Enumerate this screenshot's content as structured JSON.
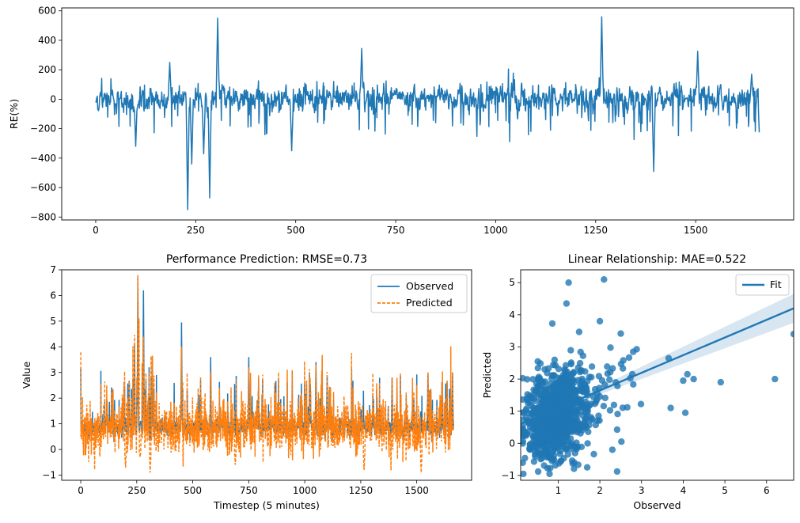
{
  "colors": {
    "observed": "#1f77b4",
    "predicted": "#ff7f0e",
    "fit_band": "#1f77b4"
  },
  "chart_data": [
    {
      "id": "re",
      "type": "line",
      "title": "",
      "xlabel": "",
      "ylabel": "RE(%)",
      "xlim": [
        -85,
        1745
      ],
      "ylim": [
        -820,
        620
      ],
      "xticks": [
        0,
        250,
        500,
        750,
        1000,
        1250,
        1500
      ],
      "yticks": [
        -800,
        -600,
        -400,
        -200,
        0,
        200,
        400,
        600
      ],
      "grid": false,
      "n_points": 1660,
      "spikes": [
        {
          "x": 185,
          "y": 250
        },
        {
          "x": 305,
          "y": 550
        },
        {
          "x": 665,
          "y": 345
        },
        {
          "x": 1265,
          "y": 560
        },
        {
          "x": 1505,
          "y": 325
        },
        {
          "x": 1640,
          "y": 170
        },
        {
          "x": 230,
          "y": -750
        },
        {
          "x": 240,
          "y": -440
        },
        {
          "x": 285,
          "y": -670
        },
        {
          "x": 270,
          "y": -370
        },
        {
          "x": 1395,
          "y": -490
        },
        {
          "x": 100,
          "y": -320
        },
        {
          "x": 490,
          "y": -350
        },
        {
          "x": 1660,
          "y": -300
        }
      ]
    },
    {
      "id": "perf",
      "type": "line",
      "title": "Performance Prediction: RMSE=0.73",
      "xlabel": "Timestep (5 minutes)",
      "ylabel": "Value",
      "xlim": [
        -85,
        1745
      ],
      "ylim": [
        -1.2,
        7.0
      ],
      "xticks": [
        0,
        250,
        500,
        750,
        1000,
        1250,
        1500
      ],
      "yticks": [
        -1,
        0,
        1,
        2,
        3,
        4,
        5,
        6,
        7
      ],
      "legend": "top-right",
      "grid": false,
      "series": [
        {
          "name": "Observed",
          "style": "solid",
          "peaks": [
            {
              "x": 240,
              "y": 4.1
            },
            {
              "x": 255,
              "y": 6.65
            },
            {
              "x": 280,
              "y": 6.2
            },
            {
              "x": 450,
              "y": 4.95
            },
            {
              "x": 320,
              "y": 3.6
            },
            {
              "x": 580,
              "y": 3.6
            },
            {
              "x": 750,
              "y": 3.6
            },
            {
              "x": 1050,
              "y": 3.4
            },
            {
              "x": 1100,
              "y": 2.9
            },
            {
              "x": 1390,
              "y": 2.8
            },
            {
              "x": 1550,
              "y": 2.9
            },
            {
              "x": 1660,
              "y": 3.0
            }
          ]
        },
        {
          "name": "Predicted",
          "style": "dashed",
          "peaks": [
            {
              "x": 260,
              "y": 5.1
            },
            {
              "x": 280,
              "y": 4.4
            },
            {
              "x": 450,
              "y": 4.0
            },
            {
              "x": 750,
              "y": 3.2
            },
            {
              "x": 1050,
              "y": 3.3
            },
            {
              "x": 1660,
              "y": 3.0
            }
          ],
          "troughs": [
            {
              "x": 200,
              "y": -0.7
            },
            {
              "x": 265,
              "y": -0.3
            },
            {
              "x": 310,
              "y": -0.9
            },
            {
              "x": 690,
              "y": -0.6
            },
            {
              "x": 1265,
              "y": -0.8
            },
            {
              "x": 1520,
              "y": -0.9
            }
          ]
        }
      ]
    },
    {
      "id": "lin",
      "type": "scatter",
      "title": "Linear Relationship: MAE=0.522",
      "xlabel": "Observed",
      "ylabel": "Predicted",
      "xlim": [
        0.1,
        6.65
      ],
      "ylim": [
        -1.15,
        5.4
      ],
      "xticks": [
        1,
        2,
        3,
        4,
        5,
        6
      ],
      "yticks": [
        -1,
        0,
        1,
        2,
        3,
        4,
        5
      ],
      "legend": "top-right",
      "grid": false,
      "n_points": 900,
      "fit": {
        "name": "Fit",
        "x0": 0.1,
        "y0": 0.6,
        "x1": 6.65,
        "y1": 4.2,
        "band_x": [
          1.0,
          6.65
        ],
        "band_halfwidth": [
          0.05,
          0.45
        ]
      },
      "outliers": [
        {
          "x": 1.25,
          "y": 5.0
        },
        {
          "x": 2.1,
          "y": 5.1
        },
        {
          "x": 6.65,
          "y": 3.4
        },
        {
          "x": 6.2,
          "y": 2.0
        },
        {
          "x": 4.9,
          "y": 1.9
        },
        {
          "x": 4.0,
          "y": 1.95
        },
        {
          "x": 4.1,
          "y": 2.15
        },
        {
          "x": 4.25,
          "y": 2.0
        },
        {
          "x": 3.7,
          "y": 1.1
        },
        {
          "x": 4.05,
          "y": 0.95
        },
        {
          "x": 3.65,
          "y": 2.65
        },
        {
          "x": 2.3,
          "y": -0.2
        },
        {
          "x": 2.8,
          "y": 2.85
        },
        {
          "x": 2.0,
          "y": 3.8
        },
        {
          "x": 1.2,
          "y": 4.35
        }
      ]
    }
  ]
}
